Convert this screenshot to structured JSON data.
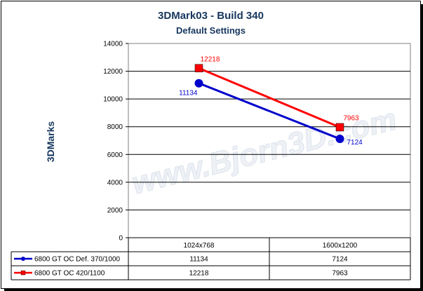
{
  "chart_data": {
    "type": "line",
    "title": "3DMark03 - Build 340",
    "subtitle": "Default Settings",
    "ylabel": "3DMarks",
    "xlabel": "",
    "ylim": [
      0,
      14000
    ],
    "yticks": [
      0,
      2000,
      4000,
      6000,
      8000,
      10000,
      12000,
      14000
    ],
    "categories": [
      "1024x768",
      "1600x1200"
    ],
    "grid": true,
    "legend": "data-table-left",
    "series": [
      {
        "name": "6800 GT OC Def. 370/1000",
        "values": [
          11134,
          7124
        ],
        "color": "#0000cc",
        "marker": "circle"
      },
      {
        "name": "6800 GT OC 420/1100",
        "values": [
          12218,
          7963
        ],
        "color": "#ff0000",
        "marker": "square"
      }
    ],
    "watermark": "www.Bjorn3D.com"
  }
}
